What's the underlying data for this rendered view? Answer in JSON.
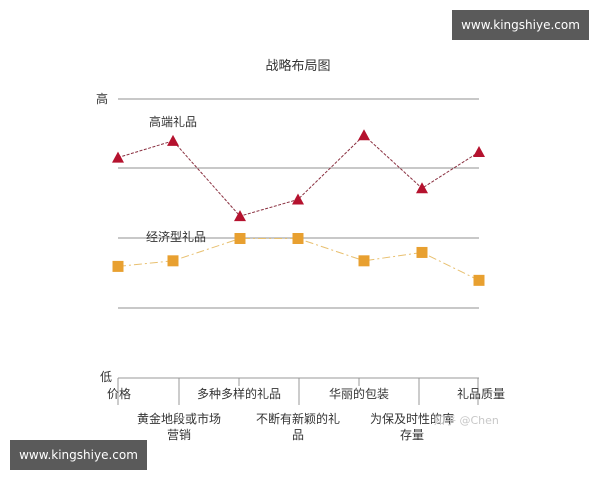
{
  "watermark_top": "www.kingshiye.com",
  "watermark_bottom": "www.kingshiye.com",
  "credit": "知乎 @Chen",
  "chart_data": {
    "type": "line",
    "title": "战略布局图",
    "xlabel": "",
    "ylabel": "",
    "y_top_label": "高",
    "y_bottom_label": "低",
    "ylim": [
      0,
      100
    ],
    "grid": true,
    "categories": [
      "价格",
      "黄金地段或市场营销",
      "多种多样的礼品",
      "不断有新颖的礼品",
      "华丽的包装",
      "为保及时性的库存量",
      "礼品质量"
    ],
    "category_lines": [
      [
        "价格"
      ],
      [
        "黄金地段或市场",
        "营销"
      ],
      [
        "多种多样的礼品"
      ],
      [
        "不断有新颖的礼",
        "品"
      ],
      [
        "华丽的包装"
      ],
      [
        "为保及时性的库",
        "存量"
      ],
      [
        "礼品质量"
      ]
    ],
    "series": [
      {
        "name": "高端礼品",
        "marker": "triangle",
        "color": "#b5122e",
        "values": [
          79,
          85,
          58,
          64,
          87,
          68,
          81
        ]
      },
      {
        "name": "经济型礼品",
        "marker": "square",
        "color": "#e8a030",
        "values": [
          40,
          42,
          50,
          50,
          42,
          45,
          35
        ]
      }
    ]
  }
}
